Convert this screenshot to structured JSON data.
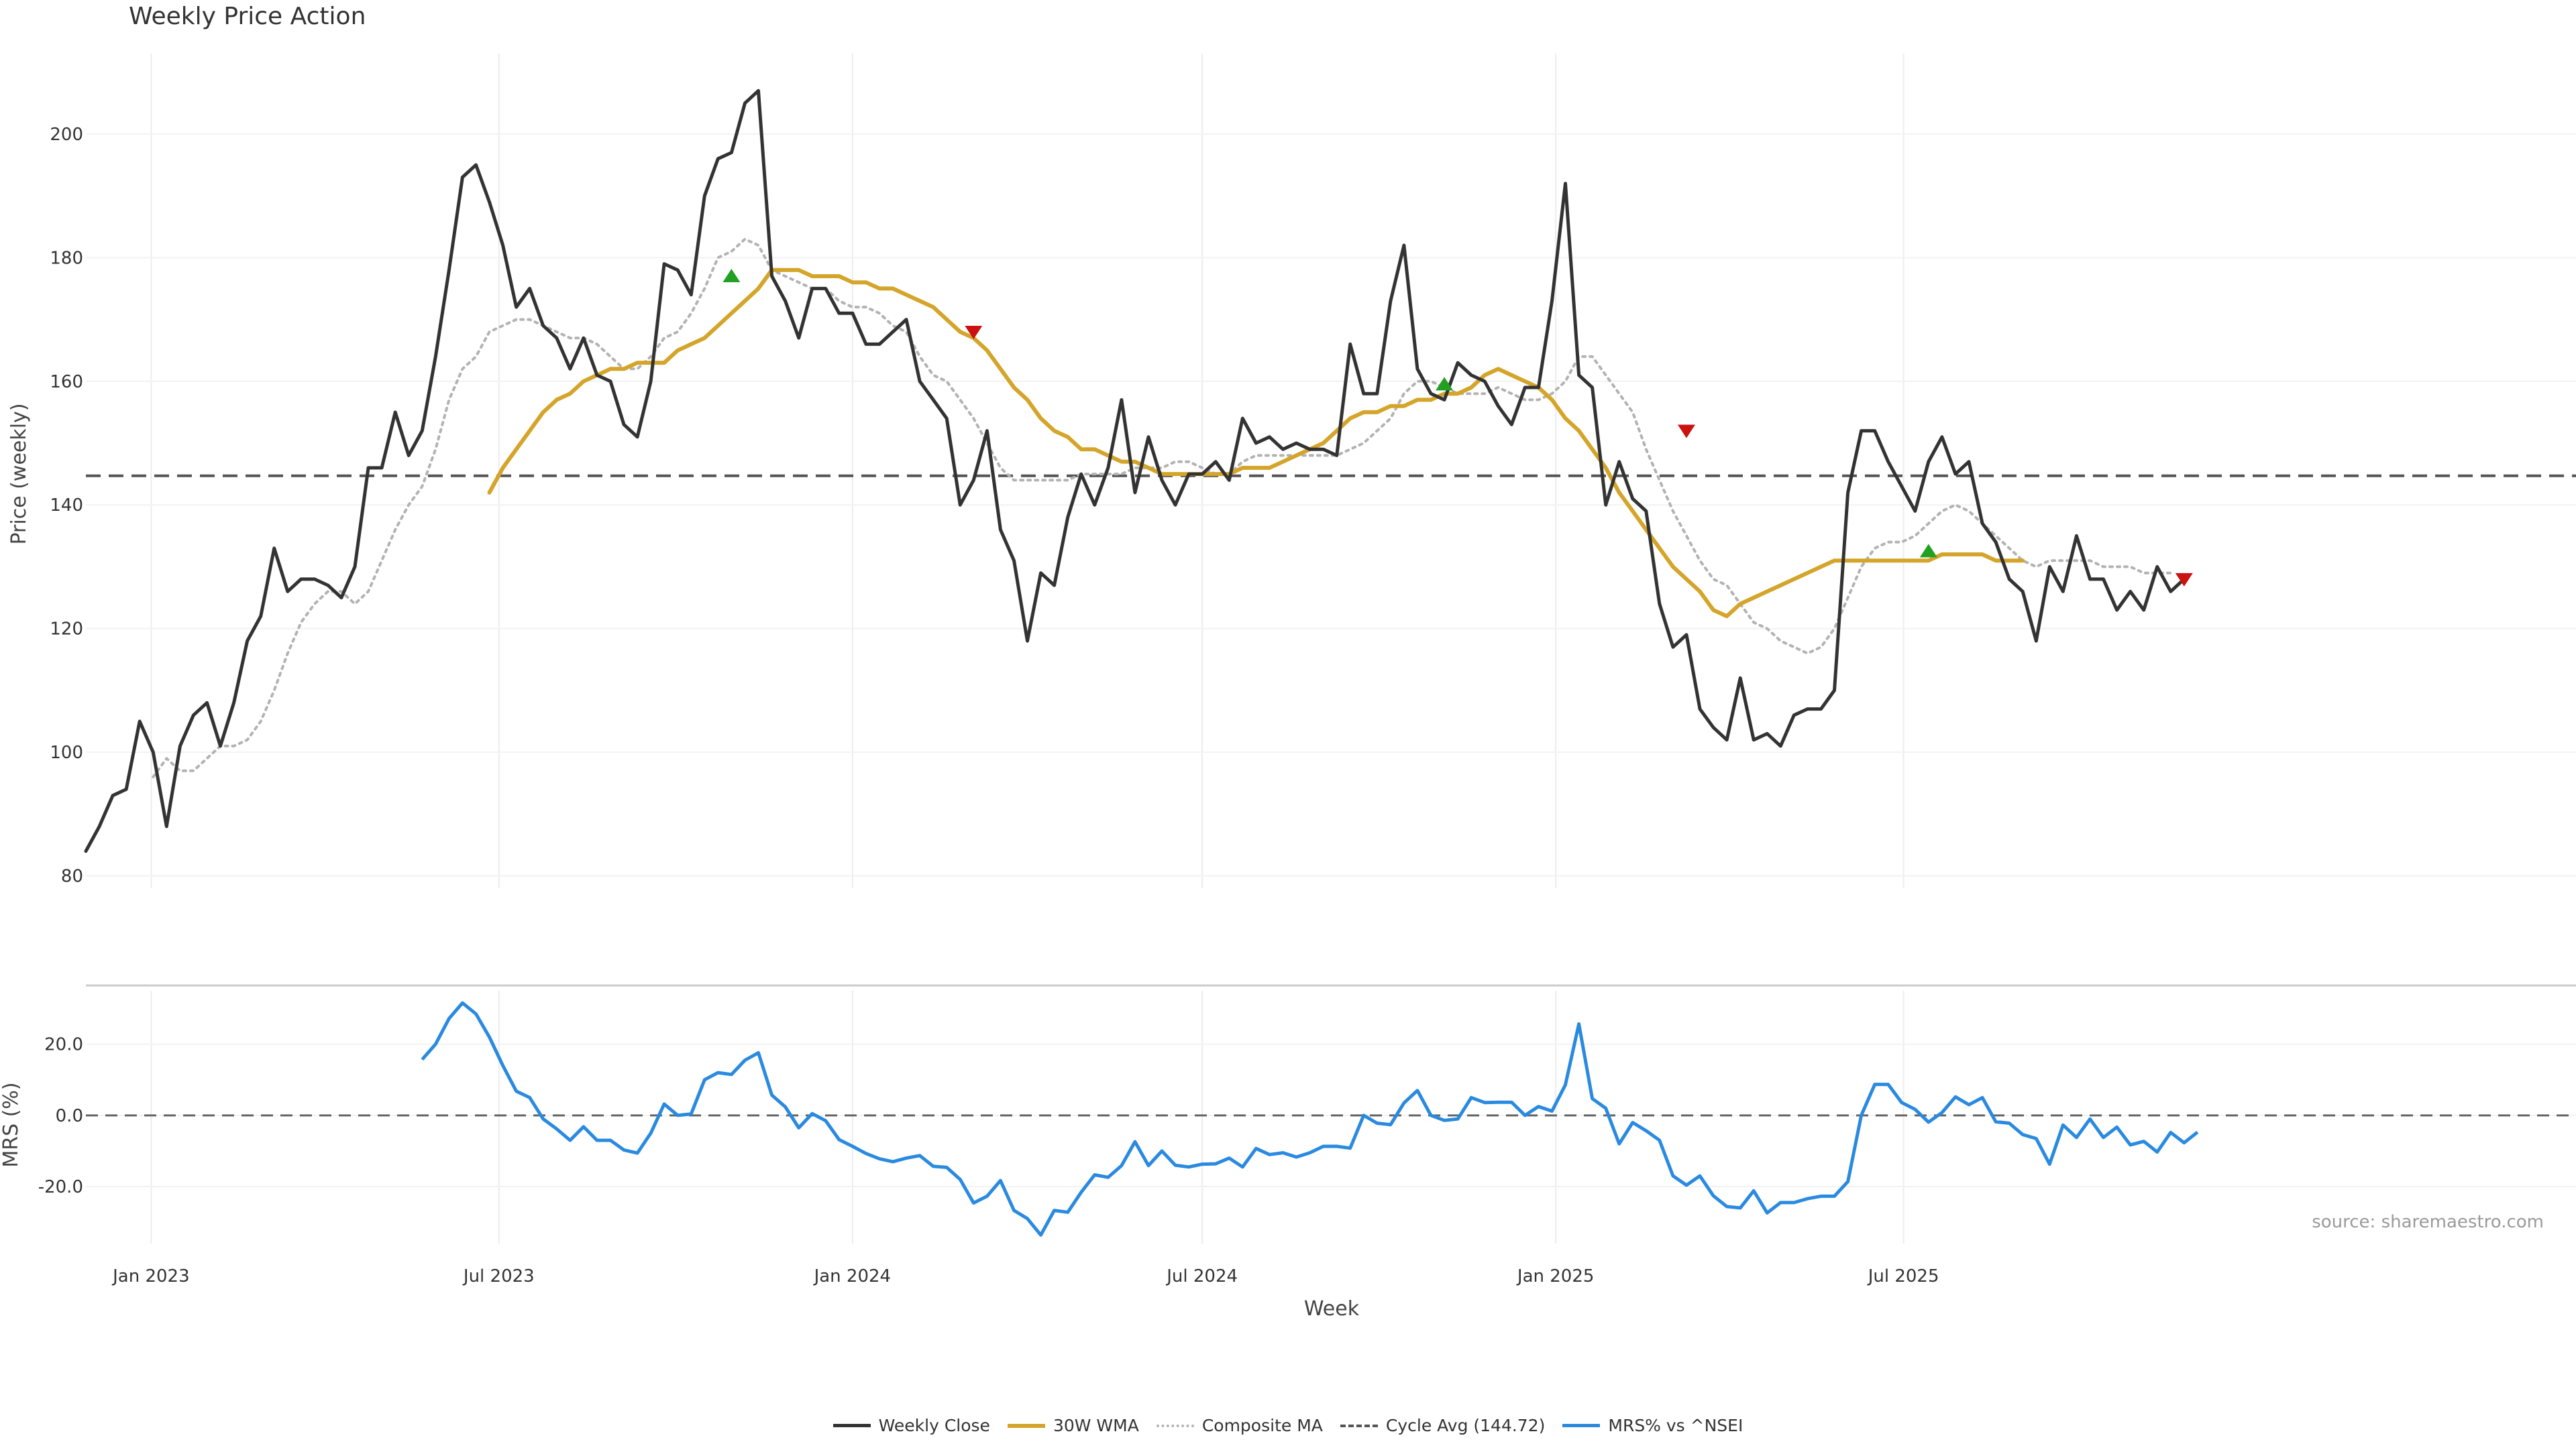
{
  "title": "Weekly Price Action",
  "source_note": "source: sharemaestro.com",
  "x_axis_title": "Week",
  "legend": [
    {
      "label": "Weekly Close",
      "color": "#333333",
      "style": "solid"
    },
    {
      "label": "30W WMA",
      "color": "#d4a52a",
      "style": "solid"
    },
    {
      "label": "Composite MA",
      "color": "#b3b3b3",
      "style": "dotted"
    },
    {
      "label": "Cycle Avg (144.72)",
      "color": "#555555",
      "style": "dashed"
    },
    {
      "label": "MRS% vs ^NSEI",
      "color": "#2a8ae0",
      "style": "solid"
    }
  ],
  "chart_data": [
    {
      "type": "line",
      "panel": "price",
      "ylabel": "Price (weekly)",
      "ylim": [
        78,
        213
      ],
      "yticks": [
        80,
        100,
        120,
        140,
        160,
        180,
        200
      ],
      "x_start": "2022-11-28",
      "x_step_days": 7,
      "xticks": [
        {
          "date": "2023-01-01",
          "label": "Jan 2023"
        },
        {
          "date": "2023-07-01",
          "label": "Jul 2023"
        },
        {
          "date": "2024-01-01",
          "label": "Jan 2024"
        },
        {
          "date": "2024-07-01",
          "label": "Jul 2024"
        },
        {
          "date": "2025-01-01",
          "label": "Jan 2025"
        },
        {
          "date": "2025-07-01",
          "label": "Jul 2025"
        }
      ],
      "grid": true,
      "series": [
        {
          "name": "Weekly Close",
          "values": [
            84,
            88,
            93,
            94,
            105,
            100,
            88,
            101,
            106,
            108,
            101,
            108,
            118,
            122,
            133,
            126,
            128,
            128,
            127,
            125,
            130,
            146,
            146,
            155,
            148,
            152,
            164,
            178,
            193,
            195,
            189,
            182,
            172,
            175,
            169,
            167,
            162,
            167,
            161,
            160,
            153,
            151,
            160,
            179,
            178,
            174,
            190,
            196,
            197,
            205,
            207,
            177,
            173,
            167,
            175,
            175,
            171,
            171,
            166,
            166,
            168,
            170,
            160,
            157,
            154,
            140,
            144,
            152,
            136,
            131,
            118,
            129,
            127,
            138,
            145,
            140,
            146,
            157,
            142,
            151,
            144,
            140,
            145,
            145,
            147,
            144,
            154,
            150,
            151,
            149,
            150,
            149,
            149,
            148,
            166,
            158,
            158,
            173,
            182,
            162,
            158,
            157,
            163,
            161,
            160,
            156,
            153,
            159,
            159,
            173,
            192,
            161,
            159,
            140,
            147,
            141,
            139,
            124,
            117,
            119,
            107,
            104,
            102,
            112,
            102,
            103,
            101,
            106,
            107,
            107,
            110,
            142,
            152,
            152,
            147,
            143,
            139,
            147,
            151,
            145,
            147,
            137,
            134,
            128,
            126,
            118,
            130,
            126,
            135,
            128,
            128,
            123,
            126,
            123,
            130,
            126,
            128
          ]
        },
        {
          "name": "30W WMA",
          "x_offset": 30,
          "values": [
            142,
            146,
            149,
            152,
            155,
            157,
            158,
            160,
            161,
            162,
            162,
            163,
            163,
            163,
            165,
            166,
            167,
            169,
            171,
            173,
            175,
            178,
            178,
            178,
            177,
            177,
            177,
            176,
            176,
            175,
            175,
            174,
            173,
            172,
            170,
            168,
            167,
            165,
            162,
            159,
            157,
            154,
            152,
            151,
            149,
            149,
            148,
            147,
            147,
            146,
            145,
            145,
            145,
            145,
            145,
            145,
            146,
            146,
            146,
            147,
            148,
            149,
            150,
            152,
            154,
            155,
            155,
            156,
            156,
            157,
            157,
            158,
            158,
            159,
            161,
            162,
            161,
            160,
            159,
            157,
            154,
            152,
            149,
            146,
            142,
            139,
            136,
            133,
            130,
            128,
            126,
            123,
            122,
            124,
            125,
            126,
            127,
            128,
            129,
            130,
            131,
            131,
            131,
            131,
            131,
            131,
            131,
            131,
            132,
            132,
            132,
            132,
            131,
            131,
            131
          ]
        },
        {
          "name": "Composite MA",
          "x_offset": 5,
          "values": [
            96,
            99,
            97,
            97,
            99,
            101,
            101,
            102,
            105,
            110,
            116,
            121,
            124,
            126,
            126,
            124,
            126,
            131,
            136,
            140,
            143,
            149,
            157,
            162,
            164,
            168,
            169,
            170,
            170,
            169,
            168,
            167,
            167,
            166,
            164,
            162,
            162,
            164,
            167,
            168,
            171,
            175,
            180,
            181,
            183,
            182,
            178,
            177,
            176,
            175,
            175,
            173,
            172,
            172,
            171,
            169,
            168,
            164,
            161,
            160,
            157,
            154,
            150,
            146,
            144,
            144,
            144,
            144,
            144,
            145,
            145,
            145,
            145,
            146,
            146,
            146,
            147,
            147,
            146,
            145,
            145,
            147,
            148,
            148,
            148,
            148,
            148,
            148,
            148,
            149,
            150,
            152,
            154,
            158,
            160,
            160,
            159,
            158,
            158,
            158,
            159,
            158,
            157,
            157,
            158,
            160,
            164,
            164,
            161,
            158,
            155,
            149,
            144,
            139,
            135,
            131,
            128,
            127,
            124,
            121,
            120,
            118,
            117,
            116,
            117,
            120,
            125,
            130,
            133,
            134,
            134,
            135,
            137,
            139,
            140,
            139,
            137,
            135,
            133,
            131,
            130,
            131,
            131,
            131,
            131,
            130,
            130,
            130,
            129,
            129,
            129
          ]
        }
      ],
      "reference_line": {
        "label": "Cycle Avg (144.72)",
        "value": 144.72
      },
      "markers": [
        {
          "index": 48,
          "value": 177,
          "direction": "up",
          "color": "#22a022"
        },
        {
          "index": 66,
          "value": 168,
          "direction": "down",
          "color": "#cc1111"
        },
        {
          "index": 101,
          "value": 159.5,
          "direction": "up",
          "color": "#22a022"
        },
        {
          "index": 119,
          "value": 152,
          "direction": "down",
          "color": "#cc1111"
        },
        {
          "index": 137,
          "value": 132.5,
          "direction": "up",
          "color": "#22a022"
        },
        {
          "index": 156,
          "value": 128,
          "direction": "down",
          "color": "#cc1111"
        }
      ]
    },
    {
      "type": "line",
      "panel": "mrs",
      "ylabel": "MRS (%)",
      "ylim": [
        -36,
        35
      ],
      "yticks": [
        -20.0,
        0.0,
        20.0
      ],
      "yticklabels": [
        "-20.0",
        "0.0",
        "20.0"
      ],
      "grid": true,
      "series": [
        {
          "name": "MRS% vs ^NSEI",
          "x_offset": 25,
          "values": [
            15.7,
            20.0,
            27.2,
            31.6,
            28.5,
            22.0,
            14.0,
            6.8,
            5.0,
            -1.0,
            -3.8,
            -7.0,
            -3.2,
            -7.0,
            -7.0,
            -9.7,
            -10.6,
            -5.0,
            3.2,
            0.0,
            0.4,
            10.0,
            12.0,
            11.5,
            15.5,
            17.6,
            5.7,
            2.4,
            -3.5,
            0.5,
            -1.5,
            -6.8,
            -8.7,
            -10.7,
            -12.2,
            -13.0,
            -12.0,
            -11.3,
            -14.3,
            -14.6,
            -18.0,
            -24.6,
            -22.7,
            -18.3,
            -26.7,
            -29.0,
            -33.6,
            -26.7,
            -27.2,
            -21.6,
            -16.7,
            -17.4,
            -14.1,
            -7.4,
            -14.1,
            -10.0,
            -14.0,
            -14.5,
            -13.7,
            -13.6,
            -12.0,
            -14.5,
            -9.3,
            -11.0,
            -10.5,
            -11.7,
            -10.5,
            -8.7,
            -8.7,
            -9.2,
            0.0,
            -2.2,
            -2.6,
            3.5,
            7.0,
            0.0,
            -1.4,
            -1.0,
            5.0,
            3.6,
            3.7,
            3.7,
            0.0,
            2.5,
            1.2,
            8.6,
            25.7,
            4.7,
            2.0,
            -8.0,
            -2.0,
            -4.3,
            -7.0,
            -17.0,
            -19.6,
            -17.0,
            -22.6,
            -25.6,
            -26.0,
            -21.2,
            -27.4,
            -24.5,
            -24.5,
            -23.4,
            -22.7,
            -22.7,
            -18.6,
            0.0,
            8.7,
            8.7,
            3.6,
            1.7,
            -1.9,
            0.8,
            5.2,
            3.0,
            5.0,
            -1.8,
            -2.2,
            -5.4,
            -6.5,
            -13.7,
            -2.7,
            -6.2,
            -1.0,
            -6.2,
            -3.3,
            -8.3,
            -7.3,
            -10.3,
            -4.8,
            -7.7,
            -4.7
          ]
        }
      ],
      "reference_line": {
        "value": 0.0
      }
    }
  ]
}
